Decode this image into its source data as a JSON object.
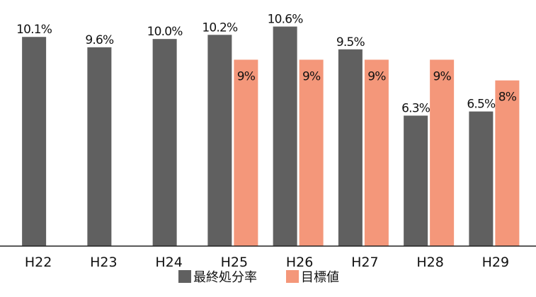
{
  "chart_data": {
    "type": "bar",
    "categories": [
      "H22",
      "H23",
      "H24",
      "H25",
      "H26",
      "H27",
      "H28",
      "H29"
    ],
    "series": [
      {
        "name": "最終処分率",
        "color": "#606060",
        "values": [
          10.1,
          9.6,
          10.0,
          10.2,
          10.6,
          9.5,
          6.3,
          6.5
        ],
        "labels": [
          "10.1%",
          "9.6%",
          "10.0%",
          "10.2%",
          "10.6%",
          "9.5%",
          "6.3%",
          "6.5%"
        ]
      },
      {
        "name": "目標値",
        "color": "#F4977A",
        "values": [
          null,
          null,
          null,
          9,
          9,
          9,
          9,
          8
        ],
        "labels": [
          "",
          "",
          "",
          "9%",
          "9%",
          "9%",
          "9%",
          "8%"
        ]
      }
    ],
    "ylim": [
      0,
      11.2
    ],
    "grid": false,
    "legend_position": "bottom-center",
    "title": "",
    "xlabel": "",
    "ylabel": ""
  }
}
